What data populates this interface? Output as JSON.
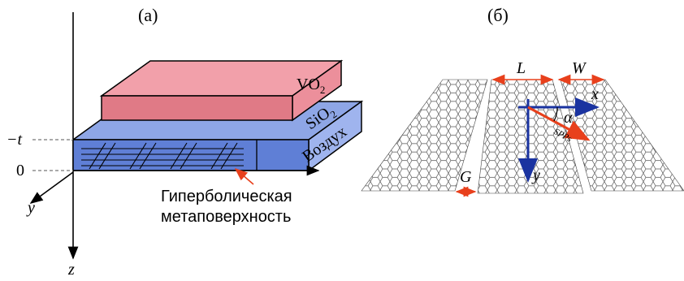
{
  "panel_a": {
    "label": "(а)",
    "layers": {
      "top": "VO",
      "top_sub": "2",
      "middle": "SiO",
      "middle_sub": "2",
      "side": "Воздух"
    },
    "axis_ticks": {
      "neg_t": "−t",
      "zero": "0"
    },
    "axes": {
      "y": "y",
      "z": "z"
    },
    "annotation_line1": "Гиперболическая",
    "annotation_line2": "метаповерхность"
  },
  "panel_b": {
    "label": "(б)",
    "dims": {
      "L": "L",
      "W": "W",
      "G": "G"
    },
    "axes": {
      "x": "x",
      "y": "y"
    },
    "angle": "α",
    "wave": "SPPs"
  },
  "colors": {
    "vo2_top": "#f2a0aa",
    "vo2_front": "#e07a86",
    "sio2_top": "#8ea6e6",
    "sio2_side": "#9fb4ee",
    "substrate_front": "#5f7fd6",
    "arrow_red": "#e8401c",
    "arrow_blue": "#1a33a0"
  }
}
